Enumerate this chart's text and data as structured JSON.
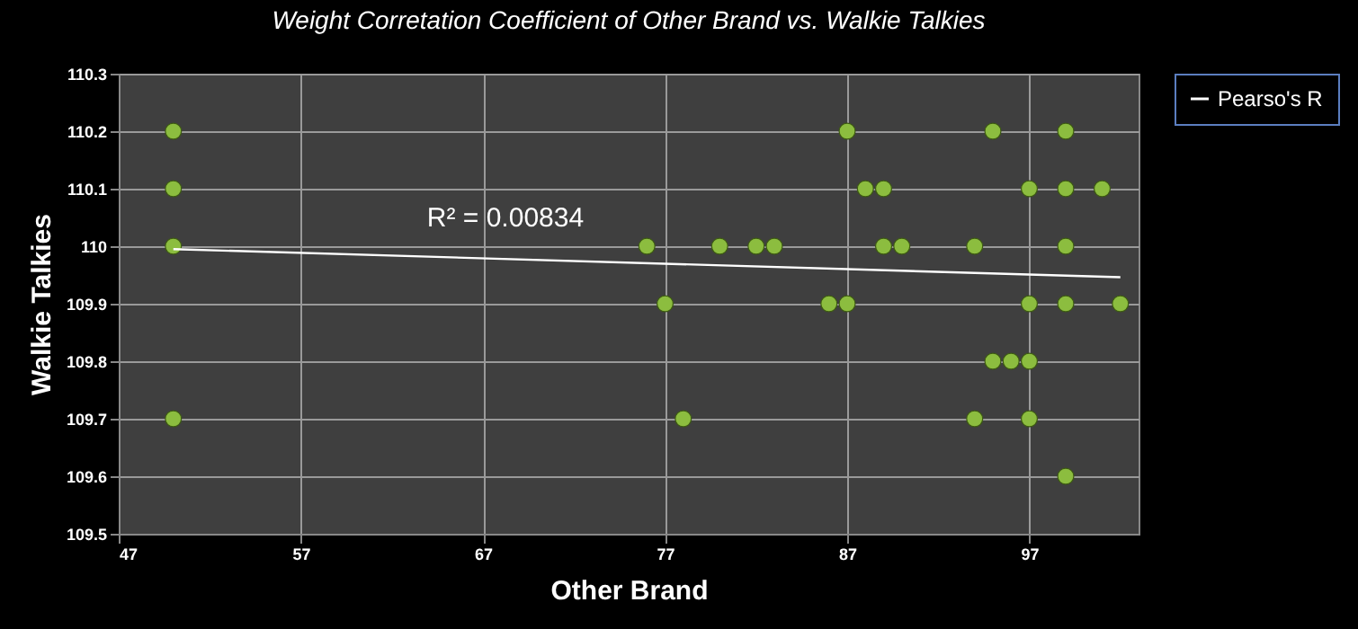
{
  "chart_data": {
    "type": "scatter",
    "title": "Weight Corretation Coefficient of Other Brand vs. Walkie Talkies",
    "xlabel": "Other Brand",
    "ylabel": "Walkie Talkies",
    "annotations": [
      "R² = 0.00834"
    ],
    "xlim": [
      47,
      103
    ],
    "xticks": [
      47,
      57,
      67,
      77,
      87,
      97
    ],
    "ylim": [
      109.5,
      110.3
    ],
    "yticks": [
      109.5,
      109.6,
      109.7,
      109.8,
      109.9,
      110,
      110.1,
      110.2,
      110.3
    ],
    "grid": true,
    "legend": "right",
    "series": [
      {
        "marker": "circle",
        "color": "#8cbd3f",
        "x": [
          50,
          50,
          50,
          50,
          76,
          77,
          78,
          80,
          82,
          83,
          86,
          87,
          87,
          88,
          89,
          89,
          90,
          94,
          94,
          95,
          95,
          96,
          97,
          97,
          97,
          97,
          99,
          99,
          99,
          99,
          99,
          101,
          102
        ],
        "values": [
          110.2,
          110.1,
          110,
          109.7,
          110,
          109.9,
          109.7,
          110,
          110,
          110,
          109.9,
          110.2,
          109.9,
          110.1,
          110.1,
          110,
          110,
          110,
          109.7,
          110.2,
          109.8,
          109.8,
          110.1,
          109.9,
          109.8,
          109.7,
          110.2,
          110.1,
          110,
          109.9,
          109.6,
          110.1,
          109.9
        ]
      },
      {
        "type": "line",
        "name": "Pearso's R",
        "color": "#ffffff",
        "x": [
          50,
          102
        ],
        "values": [
          109.995,
          109.946
        ]
      }
    ]
  }
}
